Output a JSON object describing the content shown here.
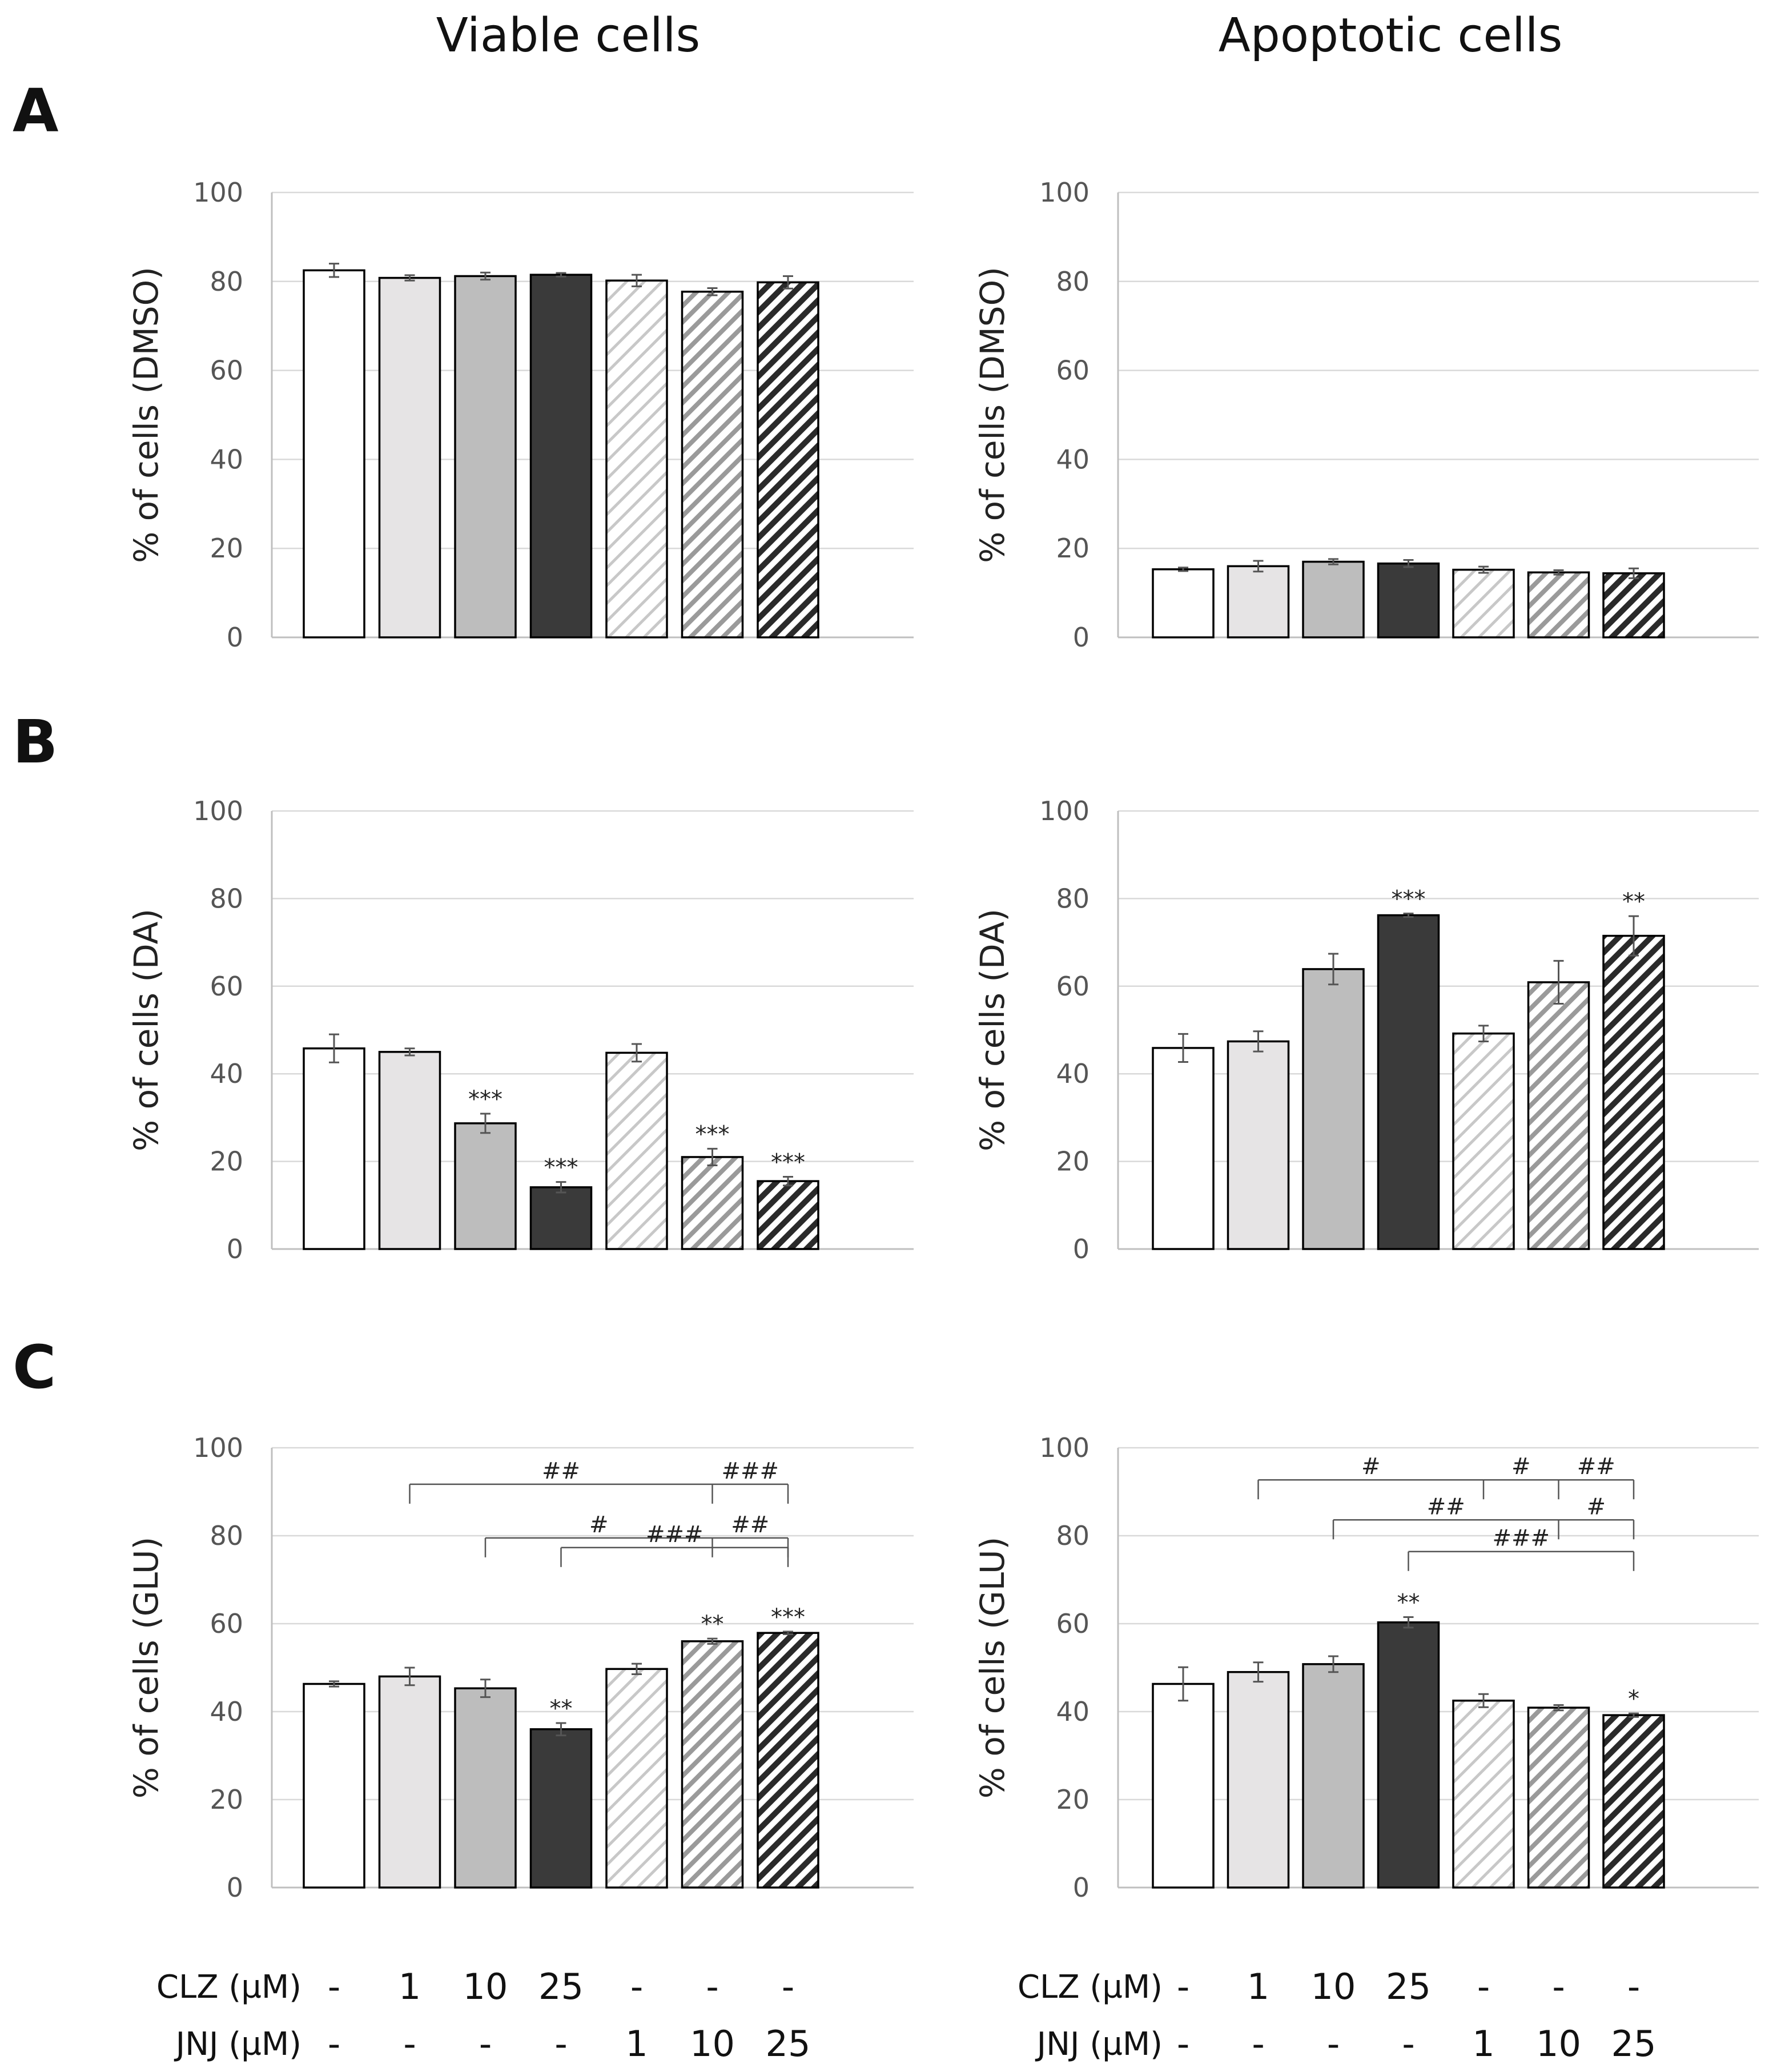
{
  "column_titles": [
    "Viable cells",
    "Apoptotic cells"
  ],
  "panel_labels": [
    "A",
    "B",
    "C"
  ],
  "x_conditions": {
    "rows": [
      {
        "label": "CLZ (µM)",
        "values": [
          "-",
          "1",
          "10",
          "25",
          "-",
          "-",
          "-"
        ]
      },
      {
        "label": "JNJ (µM)",
        "values": [
          "-",
          "-",
          "-",
          "-",
          "1",
          "10",
          "25"
        ]
      }
    ]
  },
  "colors": {
    "white": "#ffffff",
    "light_gray": "#e6e4e5",
    "mid_gray": "#bdbdbd",
    "dark": "#3a3a3a",
    "grid": "#d9d9d9",
    "axis": "#bfbfbf",
    "outline": "#000000"
  },
  "chart_data": [
    {
      "type": "bar",
      "panel": "A",
      "column": "Viable cells",
      "ylabel": "% of cells (DMSO)",
      "ylim": [
        0,
        100
      ],
      "yticks": [
        "0",
        "20",
        "40",
        "60",
        "80",
        "100"
      ],
      "values": [
        82.5,
        80.8,
        81.2,
        81.5,
        80.2,
        77.7,
        79.8
      ],
      "errors": [
        1.5,
        0.6,
        0.8,
        0.4,
        1.3,
        0.8,
        1.4
      ],
      "significance": [
        "",
        "",
        "",
        "",
        "",
        "",
        ""
      ],
      "brackets": []
    },
    {
      "type": "bar",
      "panel": "A",
      "column": "Apoptotic cells",
      "ylabel": "% of cells (DMSO)",
      "ylim": [
        0,
        100
      ],
      "yticks": [
        "0",
        "20",
        "40",
        "60",
        "80",
        "100"
      ],
      "values": [
        15.3,
        16.0,
        17.0,
        16.6,
        15.2,
        14.6,
        14.4
      ],
      "errors": [
        0.4,
        1.2,
        0.6,
        0.8,
        0.7,
        0.5,
        1.1
      ],
      "significance": [
        "",
        "",
        "",
        "",
        "",
        "",
        ""
      ],
      "brackets": []
    },
    {
      "type": "bar",
      "panel": "B",
      "column": "Viable cells",
      "ylabel": "% of cells (DA)",
      "ylim": [
        0,
        100
      ],
      "yticks": [
        "0",
        "20",
        "40",
        "60",
        "80",
        "100"
      ],
      "values": [
        45.8,
        45.0,
        28.7,
        14.1,
        44.8,
        21.0,
        15.5
      ],
      "errors": [
        3.2,
        0.8,
        2.2,
        1.2,
        2.0,
        1.9,
        1.0
      ],
      "significance": [
        "",
        "",
        "***",
        "***",
        "",
        "***",
        "***"
      ],
      "brackets": []
    },
    {
      "type": "bar",
      "panel": "B",
      "column": "Apoptotic cells",
      "ylabel": "% of cells (DA)",
      "ylim": [
        0,
        100
      ],
      "yticks": [
        "0",
        "20",
        "40",
        "60",
        "80",
        "100"
      ],
      "values": [
        45.9,
        47.4,
        63.9,
        76.2,
        49.2,
        60.9,
        71.5
      ],
      "errors": [
        3.2,
        2.3,
        3.5,
        0.4,
        1.8,
        4.9,
        4.5
      ],
      "significance": [
        "",
        "",
        "",
        "***",
        "",
        "",
        "**"
      ],
      "brackets": []
    },
    {
      "type": "bar",
      "panel": "C",
      "column": "Viable cells",
      "ylabel": "% of cells (GLU)",
      "ylim": [
        0,
        100
      ],
      "yticks": [
        "0",
        "20",
        "40",
        "60",
        "80",
        "100"
      ],
      "values": [
        46.3,
        48.0,
        45.3,
        36.0,
        49.7,
        56.0,
        57.9
      ],
      "errors": [
        0.6,
        2.0,
        2.0,
        1.4,
        1.2,
        0.6,
        0.3
      ],
      "significance": [
        "",
        "",
        "",
        "**",
        "",
        "**",
        "***"
      ],
      "brackets": [
        {
          "from": 1,
          "mid": 5,
          "to": 6,
          "y": 91.7,
          "left_label": "##",
          "right_label": "###"
        },
        {
          "from": 2,
          "mid": 5,
          "to": 6,
          "y": 79.5,
          "left_label": "#",
          "right_label": "##"
        },
        {
          "from": 3,
          "to": 6,
          "y": 77.3,
          "left_label": "###"
        }
      ]
    },
    {
      "type": "bar",
      "panel": "C",
      "column": "Apoptotic cells",
      "ylabel": "% of cells (GLU)",
      "ylim": [
        0,
        100
      ],
      "yticks": [
        "0",
        "20",
        "40",
        "60",
        "80",
        "100"
      ],
      "values": [
        46.3,
        49.0,
        50.8,
        60.3,
        42.5,
        40.9,
        39.2
      ],
      "errors": [
        3.8,
        2.2,
        1.8,
        1.2,
        1.5,
        0.6,
        0.4
      ],
      "significance": [
        "",
        "",
        "",
        "**",
        "",
        "",
        "*"
      ],
      "brackets": [
        {
          "from": 1,
          "mid": 4,
          "mid2": 5,
          "to": 6,
          "y": 92.7,
          "labels": [
            "#",
            "#",
            "##"
          ]
        },
        {
          "from": 2,
          "mid": 5,
          "to": 6,
          "y": 83.6,
          "left_label": "##",
          "right_label": "#"
        },
        {
          "from": 3,
          "to": 6,
          "y": 76.4,
          "left_label": "###"
        }
      ]
    }
  ]
}
